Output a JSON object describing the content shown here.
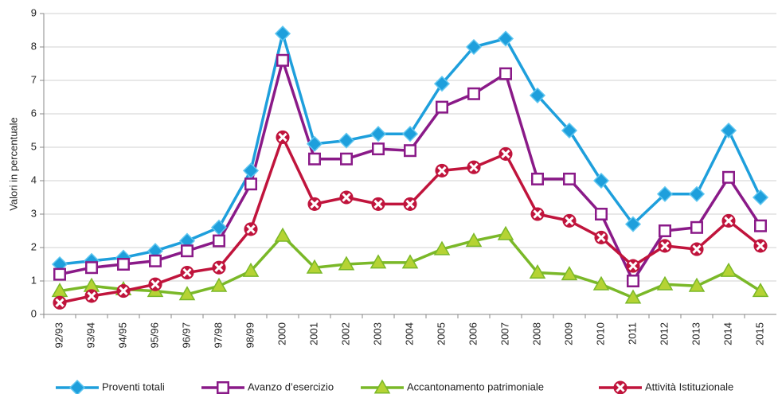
{
  "chart_data": {
    "type": "line",
    "y_label": "Valori in percentuale",
    "categories": [
      "92/93",
      "93/94",
      "94/95",
      "95/96",
      "96/97",
      "97/98",
      "98/99",
      "2000",
      "2001",
      "2002",
      "2003",
      "2004",
      "2005",
      "2006",
      "2007",
      "2008",
      "2009",
      "2010",
      "2011",
      "2012",
      "2013",
      "2014",
      "2015"
    ],
    "ylim": [
      0,
      9
    ],
    "yticks": [
      0,
      1,
      2,
      3,
      4,
      5,
      6,
      7,
      8,
      9
    ],
    "grid": true,
    "legend": "bottom",
    "series": [
      {
        "name": "Proventi totali",
        "color": "#1e9fdc",
        "marker": "diamond",
        "values": [
          1.5,
          1.6,
          1.7,
          1.9,
          2.2,
          2.6,
          4.3,
          8.4,
          5.1,
          5.2,
          5.4,
          5.4,
          6.9,
          8.0,
          8.25,
          6.55,
          5.5,
          4.0,
          2.7,
          3.6,
          3.6,
          5.5,
          3.5
        ]
      },
      {
        "name": "Avanzo d’esercizio",
        "color": "#8a1a88",
        "marker": "square",
        "values": [
          1.2,
          1.4,
          1.5,
          1.6,
          1.9,
          2.2,
          3.9,
          7.6,
          4.65,
          4.65,
          4.95,
          4.9,
          6.2,
          6.6,
          7.2,
          4.05,
          4.05,
          3.0,
          1.0,
          2.5,
          2.6,
          4.1,
          2.65
        ]
      },
      {
        "name": "Accantonamento patrimoniale",
        "color": "#7ab828",
        "marker": "triangle",
        "values": [
          0.7,
          0.85,
          0.75,
          0.7,
          0.6,
          0.85,
          1.3,
          2.35,
          1.4,
          1.5,
          1.55,
          1.55,
          1.95,
          2.2,
          2.4,
          1.25,
          1.2,
          0.9,
          0.5,
          0.9,
          0.85,
          1.3,
          0.7
        ]
      },
      {
        "name": "Attività Istituzionale",
        "color": "#c0143c",
        "marker": "cross",
        "values": [
          0.35,
          0.55,
          0.7,
          0.9,
          1.25,
          1.4,
          2.55,
          5.3,
          3.3,
          3.5,
          3.3,
          3.3,
          4.3,
          4.4,
          4.8,
          3.0,
          2.8,
          2.3,
          1.45,
          2.05,
          1.95,
          2.8,
          2.05
        ]
      }
    ]
  }
}
